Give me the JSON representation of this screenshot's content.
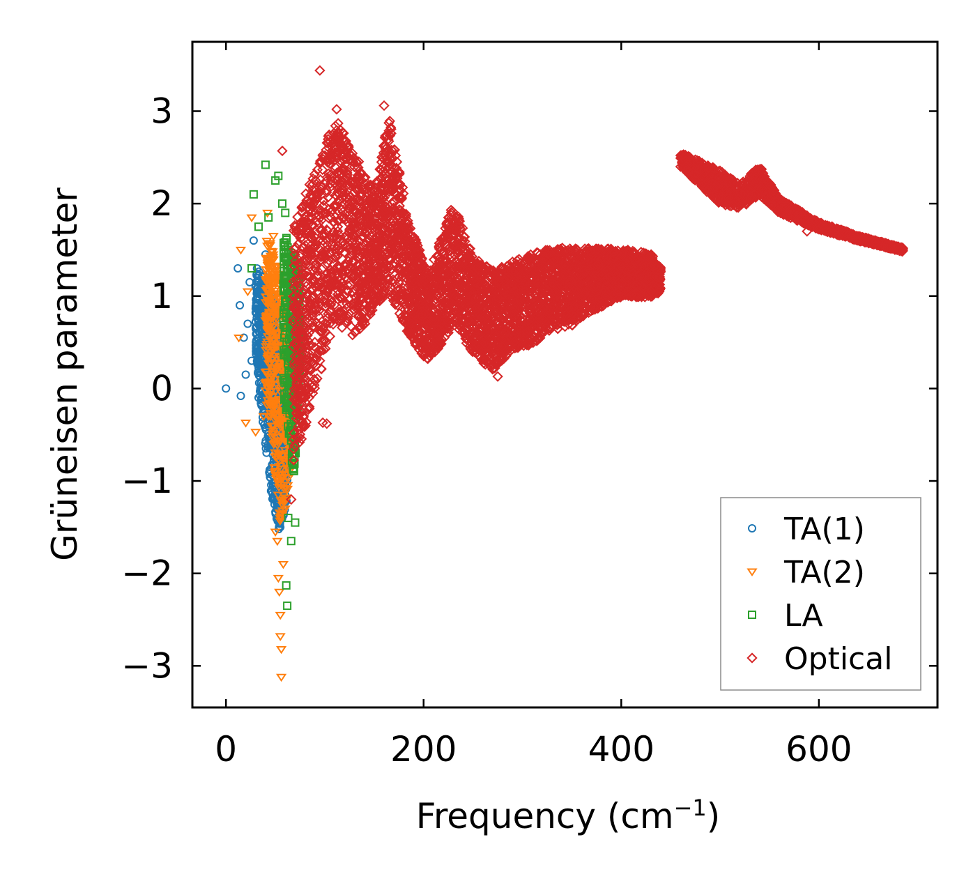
{
  "chart_data": {
    "type": "scatter",
    "xlabel": "Frequency (cm",
    "xlabel_sup": "−1",
    "xlabel_end": ")",
    "ylabel": "Grüneisen parameter",
    "xlim": [
      -34,
      720
    ],
    "ylim": [
      -3.45,
      3.75
    ],
    "xticks": [
      0,
      200,
      400,
      600
    ],
    "xtick_labels": [
      "0",
      "200",
      "400",
      "600"
    ],
    "yticks": [
      -3,
      -2,
      -1,
      0,
      1,
      2,
      3
    ],
    "ytick_labels": [
      "−3",
      "−2",
      "−1",
      "0",
      "1",
      "2",
      "3"
    ],
    "legend_position": "lower-right",
    "series": [
      {
        "name": "TA(1)",
        "marker": "circle",
        "color": "#1f77b4",
        "points": [
          [
            0,
            0.0
          ],
          [
            12,
            1.3
          ],
          [
            14,
            0.9
          ],
          [
            15,
            -0.08
          ],
          [
            18,
            0.55
          ],
          [
            20,
            0.15
          ],
          [
            22,
            0.7
          ],
          [
            24,
            1.15
          ],
          [
            26,
            0.3
          ],
          [
            28,
            1.6
          ],
          [
            30,
            1.1
          ],
          [
            33,
            -0.1
          ],
          [
            35,
            0.4
          ],
          [
            37,
            0.85
          ],
          [
            40,
            1.45
          ],
          [
            42,
            -0.3
          ],
          [
            44,
            0.2
          ],
          [
            46,
            -0.6
          ],
          [
            48,
            0.95
          ],
          [
            50,
            -1.05
          ],
          [
            52,
            -0.9
          ],
          [
            53,
            -1.3
          ],
          [
            54,
            -1.45
          ],
          [
            55,
            -1.5
          ],
          [
            56,
            -0.2
          ],
          [
            58,
            0.5
          ]
        ],
        "band": {
          "x": [
            30,
            62
          ],
          "y_top": [
            1.3,
            1.2,
            1.0,
            0.6,
            0.2
          ],
          "y_bottom": [
            0.4,
            -0.4,
            -1.1,
            -1.5,
            -1.2
          ],
          "count": 700
        }
      },
      {
        "name": "TA(2)",
        "marker": "triangle-down",
        "color": "#ff7f0e",
        "points": [
          [
            13,
            0.55
          ],
          [
            15,
            1.5
          ],
          [
            20,
            -0.37
          ],
          [
            22,
            1.05
          ],
          [
            26,
            1.85
          ],
          [
            30,
            -0.47
          ],
          [
            38,
            -0.3
          ],
          [
            42,
            1.9
          ],
          [
            44,
            1.4
          ],
          [
            48,
            1.65
          ],
          [
            50,
            -1.55
          ],
          [
            52,
            -1.65
          ],
          [
            53,
            -2.05
          ],
          [
            54,
            -2.2
          ],
          [
            55,
            -2.45
          ],
          [
            55,
            -2.68
          ],
          [
            56,
            -2.82
          ],
          [
            56,
            -3.12
          ],
          [
            58,
            -1.9
          ],
          [
            60,
            -1.3
          ],
          [
            62,
            -0.7
          ]
        ],
        "band": {
          "x": [
            40,
            68
          ],
          "y_top": [
            1.6,
            1.5,
            1.2,
            0.8,
            0.6
          ],
          "y_bottom": [
            0.0,
            -0.6,
            -1.4,
            -1.2,
            -0.6
          ],
          "count": 520
        }
      },
      {
        "name": "LA",
        "marker": "square",
        "color": "#2ca02c",
        "points": [
          [
            26,
            1.3
          ],
          [
            28,
            2.1
          ],
          [
            33,
            1.75
          ],
          [
            40,
            2.42
          ],
          [
            43,
            1.85
          ],
          [
            50,
            2.25
          ],
          [
            53,
            2.3
          ],
          [
            57,
            2.0
          ],
          [
            60,
            1.9
          ],
          [
            61,
            -2.13
          ],
          [
            62,
            -2.35
          ],
          [
            63,
            -1.4
          ],
          [
            66,
            -1.65
          ],
          [
            70,
            -1.45
          ],
          [
            72,
            1.35
          ],
          [
            74,
            0.7
          ]
        ],
        "band": {
          "x": [
            58,
            75
          ],
          "y_top": [
            1.7,
            1.5,
            1.4,
            1.2
          ],
          "y_bottom": [
            0.0,
            -0.6,
            -0.9,
            0.3
          ],
          "count": 320
        }
      },
      {
        "name": "Optical",
        "marker": "diamond",
        "color": "#d62728",
        "points": [
          [
            95,
            3.44
          ],
          [
            112,
            3.02
          ],
          [
            160,
            3.06
          ],
          [
            57,
            2.57
          ],
          [
            275,
            0.13
          ],
          [
            272,
            0.22
          ],
          [
            98,
            -0.37
          ],
          [
            102,
            -0.38
          ],
          [
            66,
            -1.2
          ],
          [
            438,
            1.12
          ],
          [
            463,
            2.53
          ],
          [
            588,
            1.7
          ],
          [
            683,
            1.5
          ]
        ],
        "band": {
          "x": [
            68,
            90,
            110,
            125,
            140,
            150,
            165,
            185,
            205,
            230,
            250,
            270,
            290,
            310,
            330,
            350,
            370,
            400,
            430,
            440
          ],
          "y_top": [
            1.7,
            2.3,
            2.9,
            2.6,
            2.3,
            2.1,
            2.9,
            1.8,
            1.2,
            2.0,
            1.4,
            1.25,
            1.35,
            1.45,
            1.5,
            1.5,
            1.5,
            1.5,
            1.45,
            1.3
          ],
          "y_bottom": [
            -0.8,
            0.0,
            0.8,
            0.6,
            0.7,
            0.9,
            1.1,
            0.6,
            0.3,
            0.7,
            0.4,
            0.2,
            0.45,
            0.5,
            0.65,
            0.7,
            0.85,
            1.0,
            1.0,
            1.05
          ],
          "count": 4800
        },
        "band2": {
          "x": [
            460,
            500,
            520,
            540,
            560,
            600,
            640,
            685
          ],
          "y_top": [
            2.55,
            2.35,
            2.2,
            2.4,
            2.05,
            1.8,
            1.65,
            1.52
          ],
          "y_bottom": [
            2.4,
            2.0,
            1.95,
            2.1,
            1.9,
            1.72,
            1.6,
            1.48
          ],
          "count": 1500
        }
      }
    ]
  }
}
